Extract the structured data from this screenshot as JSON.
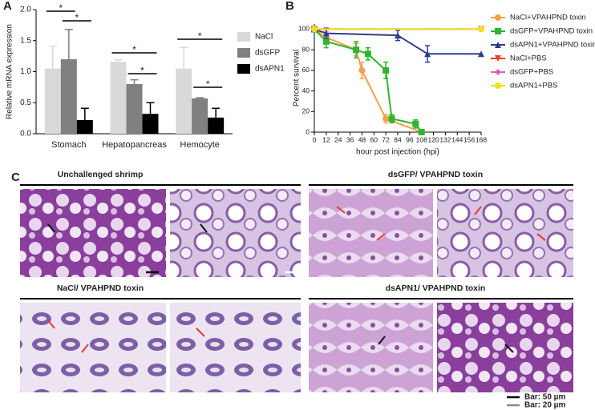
{
  "chart_data": [
    {
      "type": "bar",
      "panel": "A",
      "ylabel": "Relative mRNA expression",
      "categories": [
        "Stomach",
        "Hepatopancreas",
        "Hemocyte"
      ],
      "series": [
        {
          "name": "NaCl",
          "color": "#d9d9d9",
          "values": [
            1.05,
            1.16,
            1.05
          ],
          "errors": [
            0.36,
            0.03,
            0.34
          ]
        },
        {
          "name": "dsGFP",
          "color": "#808080",
          "values": [
            1.2,
            0.8,
            0.57
          ],
          "errors": [
            0.48,
            0.07,
            0.01
          ]
        },
        {
          "name": "dsAPN1",
          "color": "#000000",
          "values": [
            0.22,
            0.32,
            0.26
          ],
          "errors": [
            0.19,
            0.18,
            0.15
          ]
        }
      ],
      "ylim": [
        0,
        2
      ],
      "yticks": [
        {
          "value": 0,
          "label": "0.0"
        },
        {
          "value": 0.5,
          "label": "0.5"
        },
        {
          "value": 1,
          "label": "1.0"
        },
        {
          "value": 1.5,
          "label": "1.5"
        },
        {
          "value": 2,
          "label": "2.0"
        }
      ],
      "significance": [
        "*",
        "*",
        "*",
        "*",
        "*",
        "*"
      ]
    },
    {
      "type": "line",
      "panel": "B",
      "xlabel": "hour post injection (hpi)",
      "ylabel": "Percent survival",
      "xlim": [
        0,
        168
      ],
      "xticks": [
        0,
        12,
        24,
        36,
        48,
        60,
        72,
        84,
        96,
        108,
        120,
        132,
        144,
        156,
        168
      ],
      "ylim": [
        0,
        105
      ],
      "yticks": [
        0,
        20,
        40,
        60,
        80,
        100
      ],
      "series": [
        {
          "name": "NaCl+VPAHPND toxin",
          "color": "#f5a04a",
          "marker": "circle",
          "x": [
            0,
            12,
            42,
            48,
            72,
            108
          ],
          "values": [
            100,
            92,
            80,
            60,
            13,
            0
          ],
          "errors": [
            0,
            6,
            6,
            8,
            4,
            0
          ]
        },
        {
          "name": "dsGFP+VPAHPND toxin",
          "color": "#2fb52f",
          "marker": "square",
          "x": [
            0,
            12,
            42,
            54,
            72,
            78,
            102,
            108
          ],
          "values": [
            100,
            88,
            80,
            76,
            60,
            13,
            8,
            0
          ],
          "errors": [
            0,
            6,
            8,
            6,
            8,
            4,
            4,
            0
          ]
        },
        {
          "name": "dsAPN1+VPAHPND toxin",
          "color": "#2e3d8f",
          "marker": "triangle",
          "x": [
            0,
            12,
            84,
            114,
            168
          ],
          "values": [
            100,
            96,
            94,
            76,
            76
          ],
          "errors": [
            0,
            5,
            5,
            8,
            0
          ]
        },
        {
          "name": "NaCl+PBS",
          "color": "#e8452c",
          "marker": "triangle-down",
          "dashed": true,
          "x": [
            0,
            168
          ],
          "values": [
            100,
            100
          ]
        },
        {
          "name": "dsGFP+PBS",
          "color": "#e060c0",
          "marker": "diamond",
          "x": [
            0,
            168
          ],
          "values": [
            100,
            100
          ]
        },
        {
          "name": "dsAPN1+PBS",
          "color": "#f0e020",
          "marker": "circle",
          "x": [
            0,
            168
          ],
          "values": [
            100,
            100
          ]
        }
      ]
    }
  ],
  "panel_c": {
    "label": "C",
    "titles": [
      "Unchallenged shrimp",
      "dsGFP/ VPAHPND toxin",
      "NaCl/ VPAHPND toxin",
      "dsAPN1/ VPAHPND toxin"
    ],
    "scale_bars": [
      "Bar: 50 µm",
      "Bar: 20 µm"
    ]
  }
}
